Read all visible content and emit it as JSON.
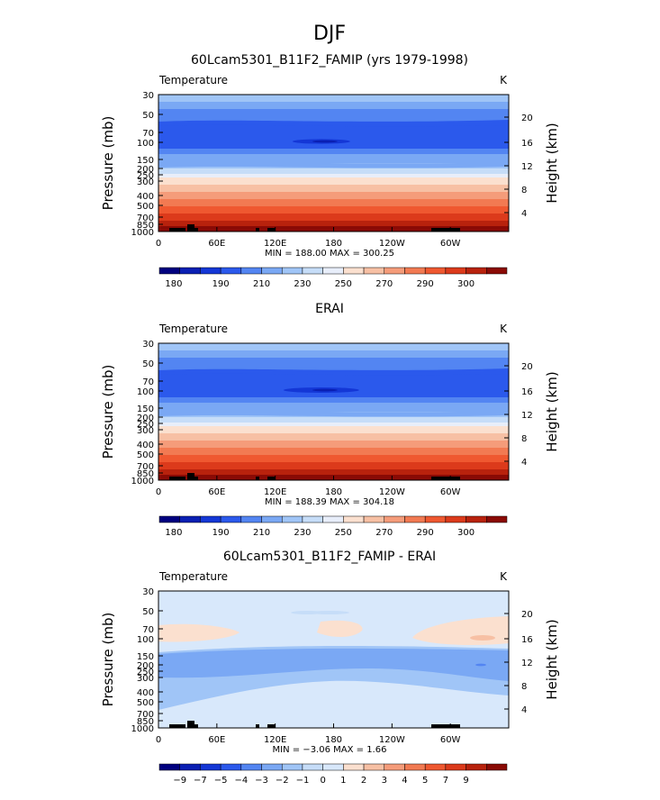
{
  "page_title": "DJF",
  "palette": {
    "temperature": [
      "#00007f",
      "#0a1fb3",
      "#1437d6",
      "#2b59ec",
      "#5385f2",
      "#7aa8f4",
      "#a0c5f7",
      "#c6ddf8",
      "#e8eefa",
      "#fbe0cf",
      "#f7c0a4",
      "#f59c7a",
      "#f27a52",
      "#ef5830",
      "#dc3a1b",
      "#b8220d",
      "#8a0a05"
    ],
    "difference": [
      "#00007f",
      "#0a1fb3",
      "#1437d6",
      "#2b59ec",
      "#5385f2",
      "#7aa8f4",
      "#a0c5f7",
      "#c6ddf8",
      "#d8e8fb",
      "#fbe0cf",
      "#f7c0a4",
      "#f59c7a",
      "#f27a52",
      "#ef5830",
      "#dc3a1b",
      "#b8220d",
      "#8a0a05"
    ]
  },
  "panels": [
    {
      "title": "60Lcam5301_B11F2_FAMIP (yrs 1979-1998)",
      "left_label": "Temperature",
      "right_label": "K",
      "minmax": "MIN = 188.00   MAX = 300.25",
      "legend_labels": [
        "180",
        "190",
        "210",
        "230",
        "250",
        "270",
        "290",
        "300"
      ]
    },
    {
      "title": "ERAI",
      "left_label": "Temperature",
      "right_label": "K",
      "minmax": "MIN = 188.39   MAX = 304.18",
      "legend_labels": [
        "180",
        "190",
        "210",
        "230",
        "250",
        "270",
        "290",
        "300"
      ]
    },
    {
      "title": "60Lcam5301_B11F2_FAMIP - ERAI",
      "left_label": "Temperature",
      "right_label": "K",
      "minmax": "MIN =  −3.06   MAX =   1.66",
      "legend_labels": [
        "−9",
        "−7",
        "−5",
        "−4",
        "−3",
        "−2",
        "−1",
        "0",
        "1",
        "2",
        "3",
        "4",
        "5",
        "7",
        "9"
      ]
    }
  ],
  "chart_data": [
    {
      "type": "heatmap",
      "title": "60Lcam5301_B11F2_FAMIP (yrs 1979-1998)",
      "ylabel": "Pressure  (mb)",
      "ylabel_right": "Height  (km)",
      "x_ticks": [
        "0",
        "60E",
        "120E",
        "180",
        "120W",
        "60W"
      ],
      "y_ticks": [
        "30",
        "50",
        "70",
        "100",
        "150",
        "200",
        "250",
        "300",
        "400",
        "500",
        "700",
        "850",
        "1000"
      ],
      "y_right_ticks": [
        "4",
        "8",
        "12",
        "16",
        "20"
      ],
      "variable": "Temperature",
      "units": "K",
      "min": 188.0,
      "max": 300.25,
      "levels": [
        180,
        190,
        210,
        230,
        250,
        270,
        290,
        300
      ]
    },
    {
      "type": "heatmap",
      "title": "ERAI",
      "ylabel": "Pressure  (mb)",
      "ylabel_right": "Height  (km)",
      "x_ticks": [
        "0",
        "60E",
        "120E",
        "180",
        "120W",
        "60W"
      ],
      "y_ticks": [
        "30",
        "50",
        "70",
        "100",
        "150",
        "200",
        "250",
        "300",
        "400",
        "500",
        "700",
        "850",
        "1000"
      ],
      "y_right_ticks": [
        "4",
        "8",
        "12",
        "16",
        "20"
      ],
      "variable": "Temperature",
      "units": "K",
      "min": 188.39,
      "max": 304.18,
      "levels": [
        180,
        190,
        210,
        230,
        250,
        270,
        290,
        300
      ]
    },
    {
      "type": "heatmap",
      "title": "60Lcam5301_B11F2_FAMIP - ERAI",
      "ylabel": "Pressure  (mb)",
      "ylabel_right": "Height  (km)",
      "x_ticks": [
        "0",
        "60E",
        "120E",
        "180",
        "120W",
        "60W"
      ],
      "y_ticks": [
        "30",
        "50",
        "70",
        "100",
        "150",
        "200",
        "250",
        "300",
        "400",
        "500",
        "700",
        "850",
        "1000"
      ],
      "y_right_ticks": [
        "4",
        "8",
        "12",
        "16",
        "20"
      ],
      "variable": "Temperature",
      "units": "K",
      "min": -3.06,
      "max": 1.66,
      "levels": [
        -9,
        -7,
        -5,
        -4,
        -3,
        -2,
        -1,
        0,
        1,
        2,
        3,
        4,
        5,
        7,
        9
      ]
    }
  ]
}
